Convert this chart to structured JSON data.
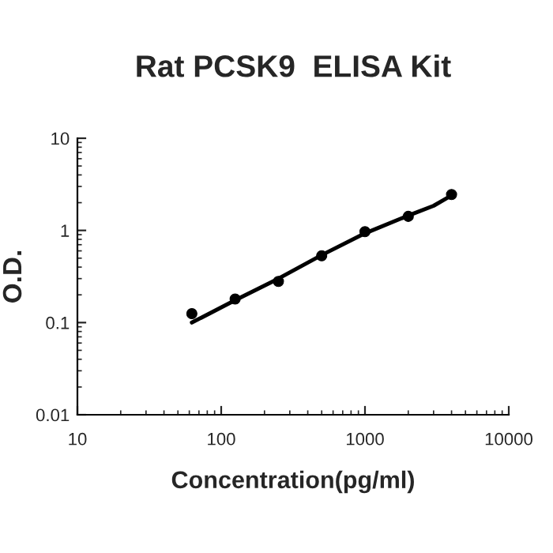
{
  "chart_data": {
    "type": "scatter",
    "title": "Rat PCSK9  ELISA Kit",
    "xlabel": "Concentration(pg/ml)",
    "ylabel": "O.D.",
    "log": "xy",
    "xlim": [
      10,
      10000
    ],
    "xticks": [
      10,
      100,
      1000,
      10000
    ],
    "ylim": [
      0.01,
      10
    ],
    "yticks": [
      0.01,
      0.1,
      1,
      10
    ],
    "grid": false,
    "series": [
      {
        "marker": "circle",
        "color": "#000000",
        "x": [
          62.5,
          125,
          250,
          500,
          1000,
          2000,
          4000
        ],
        "values": [
          0.125,
          0.18,
          0.28,
          0.53,
          0.97,
          1.42,
          2.45
        ]
      },
      {
        "type": "line",
        "color": "#000000",
        "marker": "none",
        "line_style": "solid",
        "x": [
          62.5,
          125,
          250,
          500,
          1000,
          2000,
          3000,
          4000
        ],
        "values": [
          0.1,
          0.175,
          0.3,
          0.54,
          0.93,
          1.45,
          1.85,
          2.4
        ]
      }
    ]
  }
}
